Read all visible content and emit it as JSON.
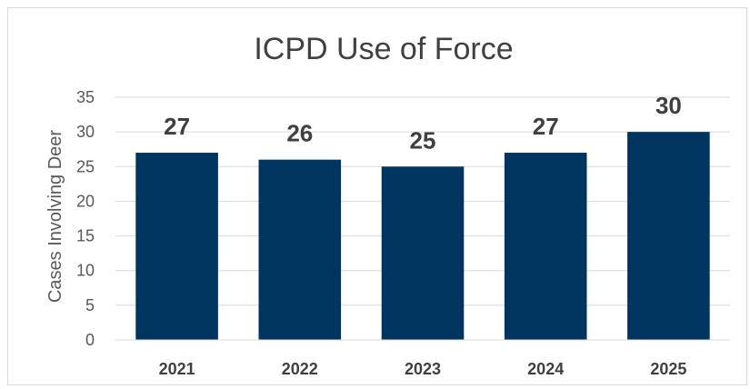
{
  "chart_data": {
    "type": "bar",
    "title": "ICPD Use of Force",
    "xlabel": "",
    "ylabel": "Cases Involving Deer",
    "categories": [
      "2021",
      "2022",
      "2023",
      "2024",
      "2025"
    ],
    "values": [
      27,
      26,
      25,
      27,
      30
    ],
    "data_labels": [
      "27",
      "26",
      "25",
      "27",
      "30"
    ],
    "ylim": [
      0,
      35
    ],
    "yticks": [
      0,
      5,
      10,
      15,
      20,
      25,
      30,
      35
    ],
    "ytick_labels": [
      "0",
      "5",
      "10",
      "15",
      "20",
      "25",
      "30",
      "35"
    ],
    "grid": true,
    "legend": "none",
    "colors": {
      "bar": "#003560",
      "grid": "#d9d9d9",
      "axis": "#d9d9d9",
      "text": "#404040"
    }
  }
}
